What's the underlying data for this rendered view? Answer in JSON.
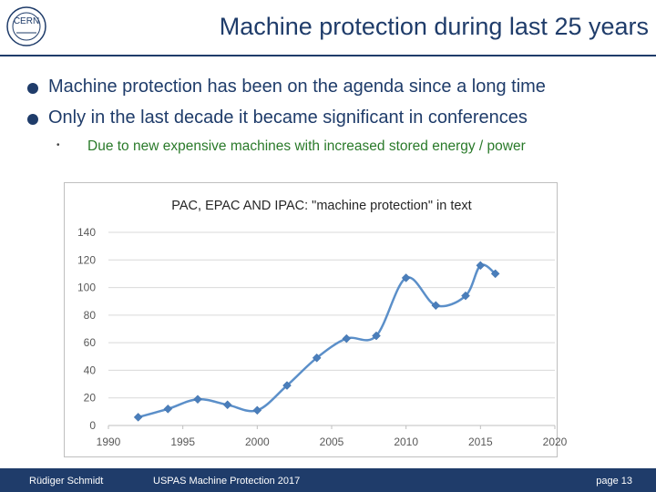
{
  "slide": {
    "title": "Machine protection during last 25 years",
    "logo_text": "CERN"
  },
  "bullets": [
    "Machine protection has been on the agenda since a long time",
    "Only in the last decade it became significant in conferences"
  ],
  "sub_bullet": "Due to new expensive machines with increased stored energy / power",
  "footer": {
    "author": "Rüdiger Schmidt",
    "event": "USPAS Machine Protection 2017",
    "page": "page 13"
  },
  "colors": {
    "primary": "#1f3c6a",
    "series": "#5b8fc9",
    "sub_text": "#2a7a2a",
    "grid": "#d9d9d9"
  },
  "chart_data": {
    "type": "line",
    "title": "PAC, EPAC AND IPAC: \"machine protection\" in text",
    "xlabel": "",
    "ylabel": "",
    "xlim": [
      1990,
      2020
    ],
    "ylim": [
      0,
      140
    ],
    "xticks": [
      1990,
      1995,
      2000,
      2005,
      2010,
      2015,
      2020
    ],
    "yticks": [
      0,
      20,
      40,
      60,
      80,
      100,
      120,
      140
    ],
    "grid": true,
    "series": [
      {
        "name": "machine protection",
        "x": [
          1992,
          1994,
          1996,
          1998,
          2000,
          2002,
          2004,
          2006,
          2008,
          2010,
          2012,
          2014,
          2015,
          2016
        ],
        "values": [
          6,
          12,
          19,
          15,
          11,
          29,
          49,
          63,
          65,
          107,
          87,
          94,
          116,
          110
        ]
      }
    ]
  }
}
